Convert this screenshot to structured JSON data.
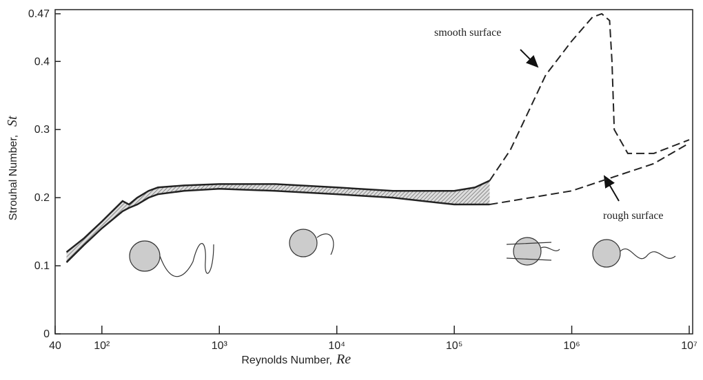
{
  "chart_data": {
    "type": "line",
    "xlabel": {
      "text": "Reynolds Number,",
      "symbol": "Re"
    },
    "ylabel": {
      "text": "Strouhal Number,",
      "symbol": "St"
    },
    "xscale": "log",
    "xlim": [
      40,
      10000000
    ],
    "ylim": [
      0,
      0.47
    ],
    "xticks": [
      40,
      {
        "value": 100,
        "label": "10²"
      },
      {
        "value": 1000,
        "label": "10³"
      },
      {
        "value": 10000,
        "label": "10⁴"
      },
      {
        "value": 100000,
        "label": "10⁵"
      },
      {
        "value": 1000000,
        "label": "10⁶"
      },
      {
        "value": 10000000,
        "label": "10⁷"
      }
    ],
    "yticks": [
      0,
      0.1,
      0.2,
      0.3,
      0.4,
      0.47
    ],
    "series": [
      {
        "color": "#222222",
        "dash": false,
        "x": [
          50,
          70,
          100,
          150,
          170,
          200,
          250,
          300,
          500,
          1000,
          3000,
          10000,
          30000,
          100000,
          150000,
          200000
        ],
        "values": [
          0.12,
          0.14,
          0.165,
          0.195,
          0.19,
          0.2,
          0.21,
          0.215,
          0.218,
          0.22,
          0.22,
          0.215,
          0.21,
          0.21,
          0.215,
          0.225
        ]
      },
      {
        "color": "#222222",
        "dash": false,
        "x": [
          50,
          70,
          100,
          150,
          170,
          200,
          250,
          300,
          500,
          1000,
          3000,
          10000,
          30000,
          100000,
          150000,
          200000
        ],
        "values": [
          0.105,
          0.13,
          0.155,
          0.18,
          0.185,
          0.19,
          0.2,
          0.205,
          0.21,
          0.213,
          0.21,
          0.205,
          0.2,
          0.19,
          0.19,
          0.19
        ]
      },
      {
        "name": "smooth surface",
        "color": "#222222",
        "dash": true,
        "x": [
          200000,
          300000,
          600000,
          1000000,
          1500000,
          1800000,
          2100000,
          2200000,
          2300000,
          3000000,
          5000000,
          10000000
        ],
        "values": [
          0.225,
          0.27,
          0.38,
          0.43,
          0.465,
          0.47,
          0.46,
          0.4,
          0.3,
          0.265,
          0.265,
          0.285
        ]
      },
      {
        "name": "rough surface",
        "color": "#222222",
        "dash": true,
        "x": [
          200000,
          1000000,
          5000000,
          10000000
        ],
        "values": [
          0.19,
          0.21,
          0.25,
          0.28
        ]
      }
    ]
  }
}
